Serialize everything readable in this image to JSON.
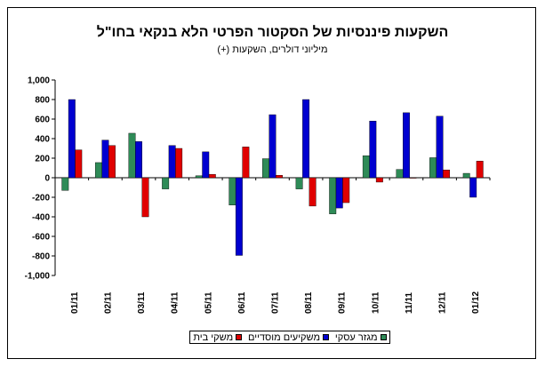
{
  "chart_data": {
    "type": "bar",
    "title": "השקעות פיננסיות של הסקטור הפרטי הלא בנקאי בחו\"ל",
    "subtitle": "מיליוני דולרים, השקעות (+)",
    "categories": [
      "01/11",
      "02/11",
      "03/11",
      "04/11",
      "05/11",
      "06/11",
      "07/11",
      "08/11",
      "09/11",
      "10/11",
      "11/11",
      "12/11",
      "01/12"
    ],
    "ylim": [
      -1000,
      1000
    ],
    "yticks": [
      1000,
      800,
      600,
      400,
      200,
      0,
      -200,
      -400,
      -600,
      -800,
      -1000
    ],
    "ytick_labels": [
      "1,000",
      "800",
      "600",
      "400",
      "200",
      "0",
      "-200",
      "-400",
      "-600",
      "-800",
      "-1,000"
    ],
    "grid": false,
    "legend_position": "bottom",
    "series": [
      {
        "name": "מגזר עסקי",
        "color": "#2e8b57",
        "values": [
          -130,
          155,
          455,
          -115,
          20,
          -280,
          195,
          -115,
          -370,
          225,
          85,
          205,
          45
        ]
      },
      {
        "name": "משקיעים מוסדיים",
        "color": "#0000d0",
        "values": [
          800,
          385,
          370,
          330,
          265,
          -795,
          645,
          800,
          -310,
          580,
          665,
          630,
          -200
        ]
      },
      {
        "name": "משקי בית",
        "color": "#e00000",
        "values": [
          285,
          330,
          -400,
          300,
          35,
          315,
          25,
          -290,
          -255,
          -45,
          -5,
          80,
          170
        ]
      }
    ]
  }
}
